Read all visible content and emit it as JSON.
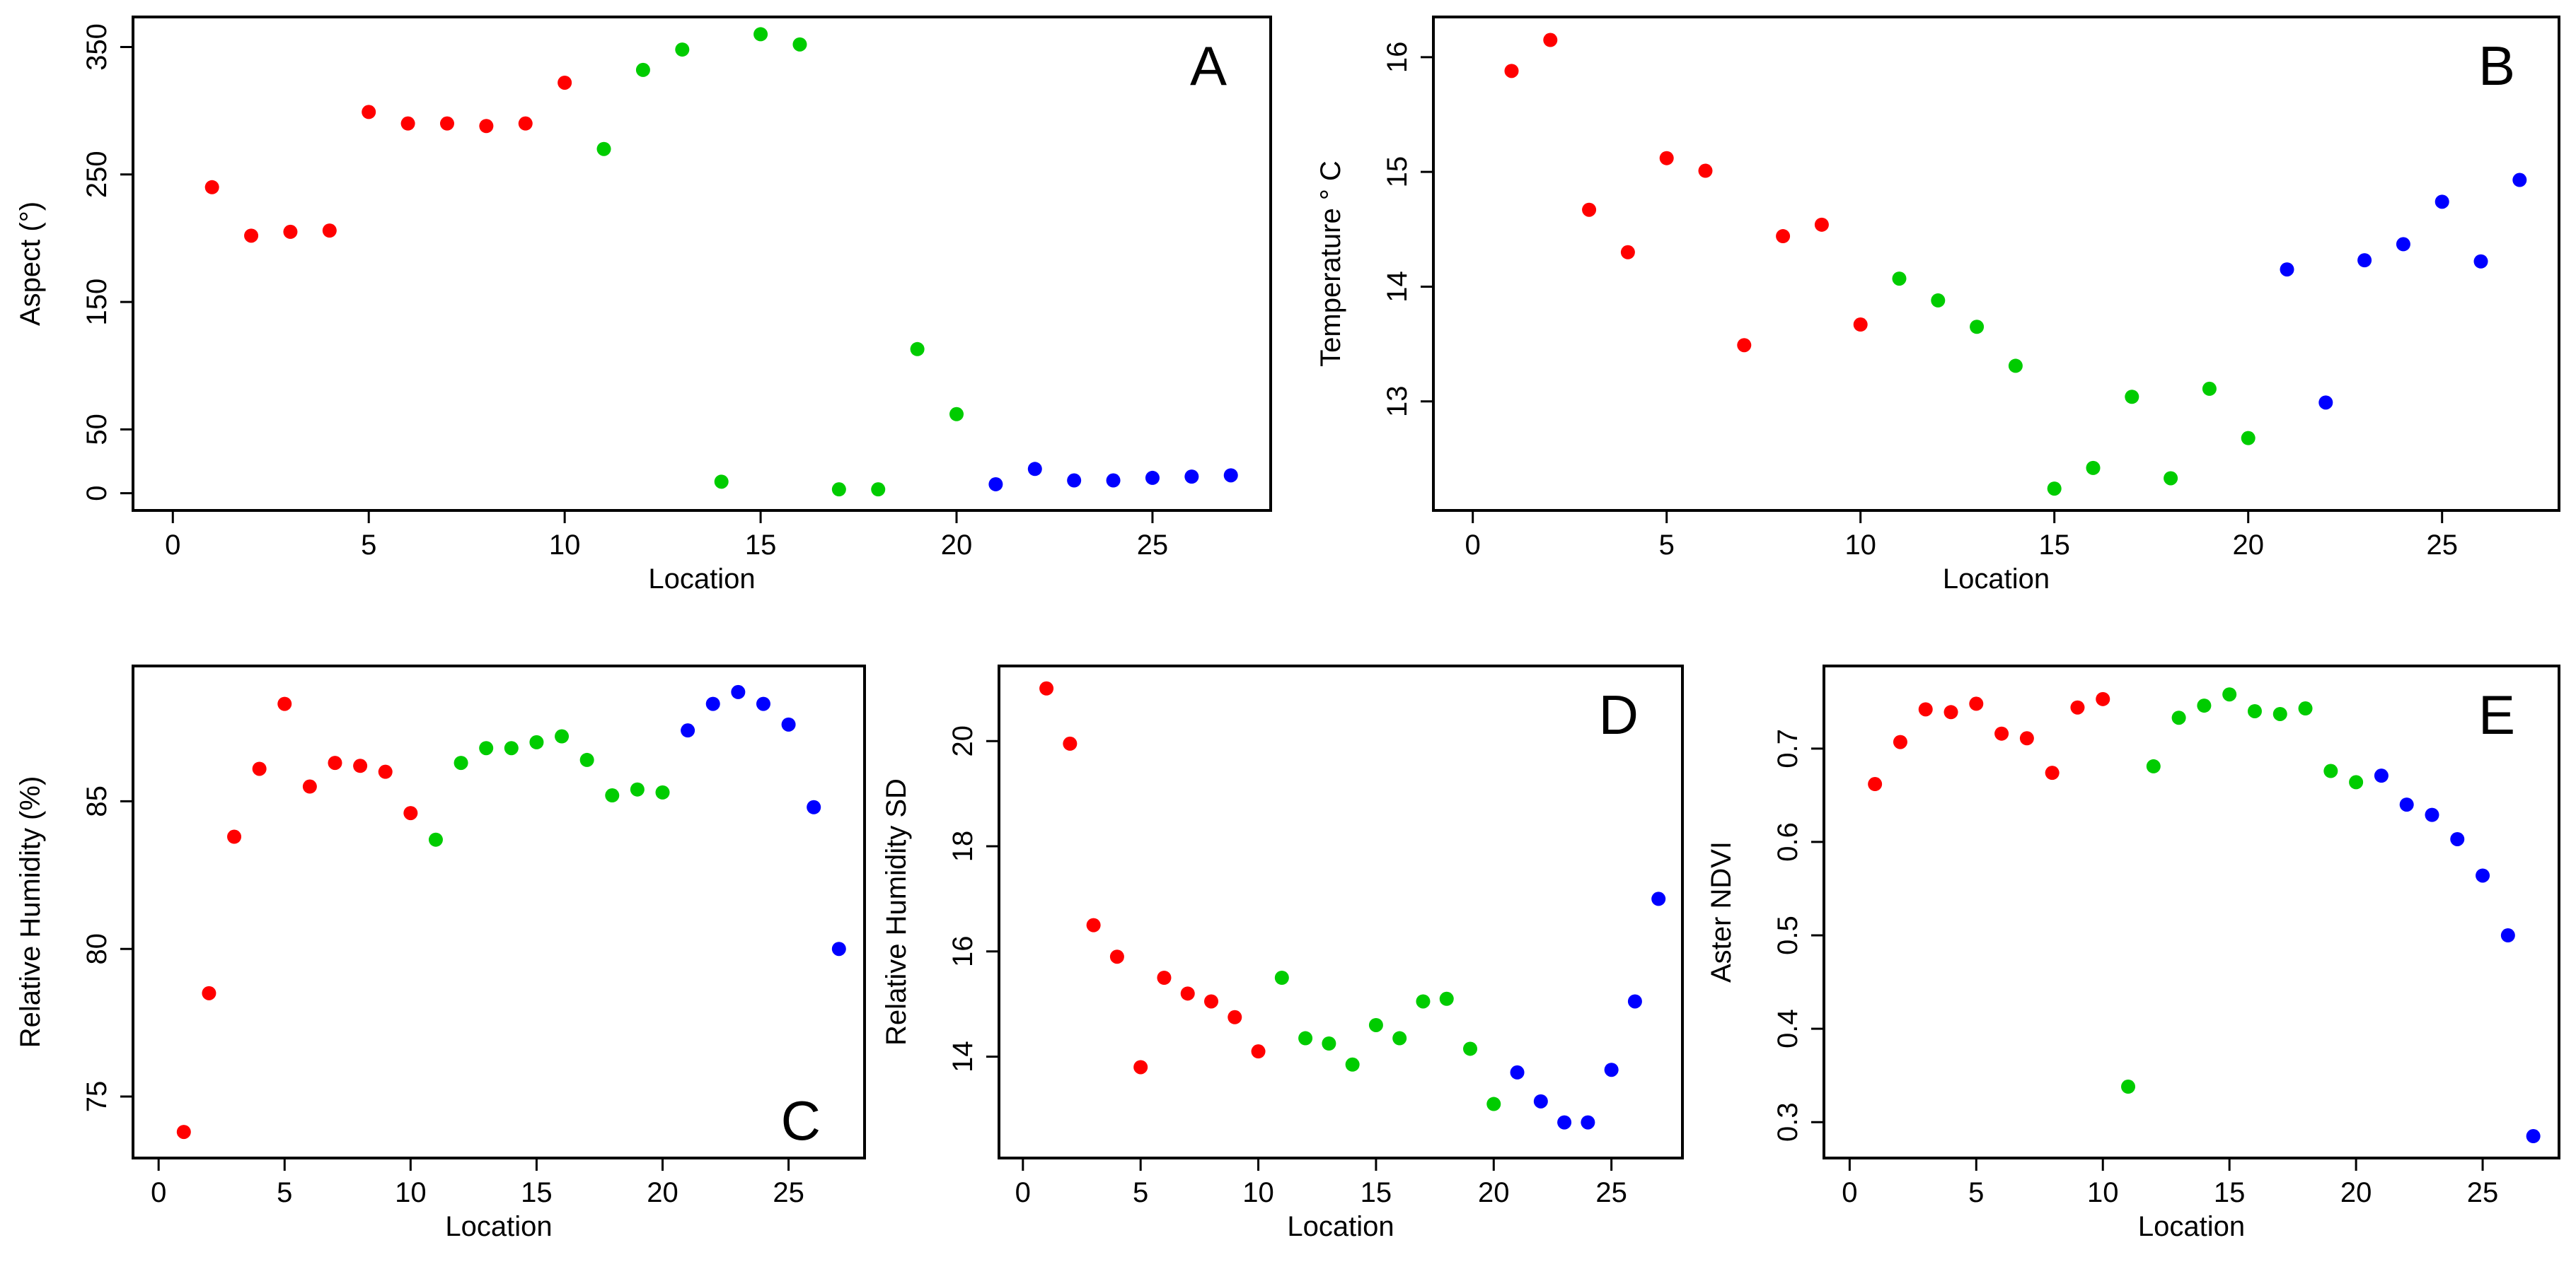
{
  "colors": {
    "group1": "#ff0000",
    "group2": "#00cc00",
    "group3": "#0000ff"
  },
  "chart_data": [
    {
      "type": "scatter",
      "panel": "A",
      "xlabel": "Location",
      "ylabel": "Aspect (°)",
      "xlim": [
        0,
        27
      ],
      "ylim": [
        0,
        360
      ],
      "xticks": [
        0,
        5,
        10,
        15,
        20,
        25
      ],
      "yticks": [
        0,
        50,
        150,
        250,
        350
      ],
      "groups": [
        1,
        1,
        1,
        1,
        1,
        1,
        1,
        1,
        1,
        1,
        2,
        2,
        2,
        2,
        2,
        2,
        2,
        2,
        2,
        2,
        3,
        3,
        3,
        3,
        3,
        3,
        3
      ],
      "x": [
        1,
        2,
        3,
        4,
        5,
        6,
        7,
        8,
        9,
        10,
        11,
        12,
        13,
        14,
        15,
        16,
        17,
        18,
        19,
        20,
        21,
        22,
        23,
        24,
        25,
        26,
        27
      ],
      "y": [
        240,
        202,
        205,
        206,
        299,
        290,
        290,
        288,
        290,
        322,
        270,
        332,
        348,
        9,
        360,
        352,
        3,
        3,
        113,
        62,
        7,
        19,
        10,
        10,
        12,
        13,
        14
      ]
    },
    {
      "type": "scatter",
      "panel": "B",
      "xlabel": "Location",
      "ylabel": "Temperature ° C",
      "xlim": [
        0,
        27
      ],
      "ylim": [
        12.2,
        16.2
      ],
      "xticks": [
        0,
        5,
        10,
        15,
        20,
        25
      ],
      "yticks": [
        13,
        14,
        15,
        16
      ],
      "groups": [
        1,
        1,
        1,
        1,
        1,
        1,
        1,
        1,
        1,
        1,
        2,
        2,
        2,
        2,
        2,
        2,
        2,
        2,
        2,
        2,
        3,
        3,
        3,
        3,
        3,
        3,
        3
      ],
      "x": [
        1,
        2,
        3,
        4,
        5,
        6,
        7,
        8,
        9,
        10,
        11,
        12,
        13,
        14,
        15,
        16,
        17,
        18,
        19,
        20,
        21,
        22,
        23,
        24,
        25,
        26,
        27
      ],
      "y": [
        15.88,
        16.15,
        14.67,
        14.3,
        15.12,
        15.01,
        13.49,
        14.44,
        14.54,
        13.67,
        14.07,
        13.88,
        13.65,
        13.31,
        12.24,
        12.42,
        13.04,
        12.33,
        13.11,
        12.68,
        14.15,
        12.99,
        14.23,
        14.37,
        14.74,
        14.22,
        14.93
      ]
    },
    {
      "type": "scatter",
      "panel": "C",
      "xlabel": "Location",
      "ylabel": "Relative Humidity (%)",
      "xlim": [
        0,
        27
      ],
      "ylim": [
        73.5,
        89
      ],
      "xticks": [
        0,
        5,
        10,
        15,
        20,
        25
      ],
      "yticks": [
        75,
        80,
        85
      ],
      "groups": [
        1,
        1,
        1,
        1,
        1,
        1,
        1,
        1,
        1,
        1,
        2,
        2,
        2,
        2,
        2,
        2,
        2,
        2,
        2,
        2,
        3,
        3,
        3,
        3,
        3,
        3,
        3
      ],
      "x": [
        1,
        2,
        3,
        4,
        5,
        6,
        7,
        8,
        9,
        10,
        11,
        12,
        13,
        14,
        15,
        16,
        17,
        18,
        19,
        20,
        21,
        22,
        23,
        24,
        25,
        26,
        27
      ],
      "y": [
        73.8,
        78.5,
        83.8,
        86.1,
        88.3,
        85.5,
        86.3,
        86.2,
        86.0,
        84.6,
        83.7,
        86.3,
        86.8,
        86.8,
        87.0,
        87.2,
        86.4,
        85.2,
        85.4,
        85.3,
        87.4,
        88.3,
        88.7,
        88.3,
        87.6,
        84.8,
        80.0
      ]
    },
    {
      "type": "scatter",
      "panel": "D",
      "xlabel": "Location",
      "ylabel": "Relative Humidity SD",
      "xlim": [
        0,
        27
      ],
      "ylim": [
        12.4,
        21.1
      ],
      "xticks": [
        0,
        5,
        10,
        15,
        20,
        25
      ],
      "yticks": [
        14,
        16,
        18,
        20
      ],
      "groups": [
        1,
        1,
        1,
        1,
        1,
        1,
        1,
        1,
        1,
        1,
        2,
        2,
        2,
        2,
        2,
        2,
        2,
        2,
        2,
        2,
        3,
        3,
        3,
        3,
        3,
        3,
        3
      ],
      "x": [
        1,
        2,
        3,
        4,
        5,
        6,
        7,
        8,
        9,
        10,
        11,
        12,
        13,
        14,
        15,
        16,
        17,
        18,
        19,
        20,
        21,
        22,
        23,
        24,
        25,
        26,
        27
      ],
      "y": [
        21.0,
        19.95,
        16.5,
        15.9,
        13.8,
        15.5,
        15.2,
        15.05,
        14.75,
        14.1,
        15.5,
        14.35,
        14.25,
        13.85,
        14.6,
        14.35,
        15.05,
        15.1,
        14.15,
        13.1,
        13.7,
        13.15,
        12.75,
        12.75,
        13.75,
        15.05,
        17.0
      ]
    },
    {
      "type": "scatter",
      "panel": "E",
      "xlabel": "Location",
      "ylabel": "Aster NDVI",
      "xlim": [
        0,
        27
      ],
      "ylim": [
        0.28,
        0.77
      ],
      "xticks": [
        0,
        5,
        10,
        15,
        20,
        25
      ],
      "yticks": [
        0.3,
        0.4,
        0.5,
        0.6,
        0.7
      ],
      "groups": [
        1,
        1,
        1,
        1,
        1,
        1,
        1,
        1,
        1,
        1,
        2,
        2,
        2,
        2,
        2,
        2,
        2,
        2,
        2,
        2,
        3,
        3,
        3,
        3,
        3,
        3,
        3
      ],
      "x": [
        1,
        2,
        3,
        4,
        5,
        6,
        7,
        8,
        9,
        10,
        11,
        12,
        13,
        14,
        15,
        16,
        17,
        18,
        19,
        20,
        21,
        22,
        23,
        24,
        25,
        26,
        27
      ],
      "y": [
        0.662,
        0.707,
        0.742,
        0.739,
        0.748,
        0.716,
        0.711,
        0.674,
        0.744,
        0.753,
        0.338,
        0.681,
        0.733,
        0.746,
        0.758,
        0.74,
        0.737,
        0.743,
        0.676,
        0.664,
        0.671,
        0.64,
        0.629,
        0.603,
        0.564,
        0.5,
        0.285
      ]
    }
  ]
}
